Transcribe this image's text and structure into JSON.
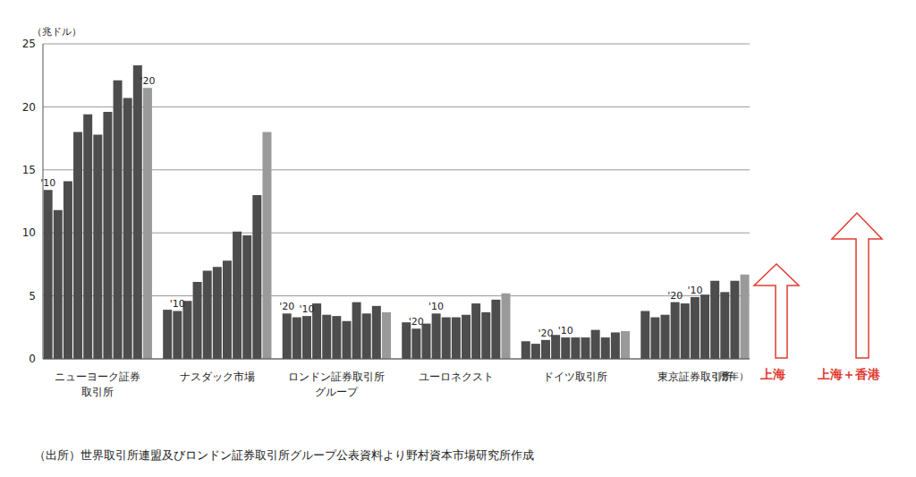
{
  "chart_data": {
    "type": "bar",
    "y_unit_label": "（兆ドル）",
    "x_unit_label": "（暦年）",
    "ylim": [
      0,
      25
    ],
    "yticks": [
      0,
      5,
      10,
      15,
      20,
      25
    ],
    "grid": true,
    "year_labels": [
      "'10",
      null,
      null,
      null,
      null,
      null,
      null,
      null,
      null,
      null,
      "'20"
    ],
    "colors": [
      "#4d4d4d",
      "#4d4d4d",
      "#4d4d4d",
      "#4d4d4d",
      "#4d4d4d",
      "#4d4d4d",
      "#4d4d4d",
      "#4d4d4d",
      "#4d4d4d",
      "#4d4d4d",
      "#9a9a9a"
    ],
    "groups": [
      {
        "name": "ニューヨーク証券\n取引所",
        "values": [
          13.4,
          11.8,
          14.1,
          18.0,
          19.4,
          17.8,
          19.6,
          22.1,
          20.7,
          23.3,
          21.5
        ]
      },
      {
        "name": "ナスダック市場",
        "values": [
          3.9,
          3.8,
          4.6,
          6.1,
          7.0,
          7.3,
          7.8,
          10.1,
          9.8,
          13.0,
          18.0
        ]
      },
      {
        "name": "ロンドン証券取引所\nグループ",
        "values": [
          3.6,
          3.3,
          3.4,
          4.4,
          3.5,
          3.4,
          3.0,
          4.5,
          3.6,
          4.2,
          3.7
        ]
      },
      {
        "name": "ユーロネクスト",
        "values": [
          2.9,
          2.4,
          2.8,
          3.6,
          3.3,
          3.3,
          3.5,
          4.4,
          3.7,
          4.7,
          5.2
        ]
      },
      {
        "name": "ドイツ取引所",
        "values": [
          1.4,
          1.2,
          1.5,
          1.9,
          1.7,
          1.7,
          1.7,
          2.3,
          1.7,
          2.1,
          2.2
        ]
      },
      {
        "name": "東京証券取引所",
        "values": [
          3.8,
          3.3,
          3.5,
          4.5,
          4.4,
          4.9,
          5.1,
          6.2,
          5.3,
          6.2,
          6.7
        ]
      }
    ],
    "annotations": [
      {
        "text": "上海",
        "color": "#e03c31"
      },
      {
        "text": "上海＋香港",
        "color": "#e03c31"
      }
    ],
    "source": "（出所）世界取引所連盟及びロンドン証券取引所グループ公表資料より野村資本市場研究所作成"
  }
}
